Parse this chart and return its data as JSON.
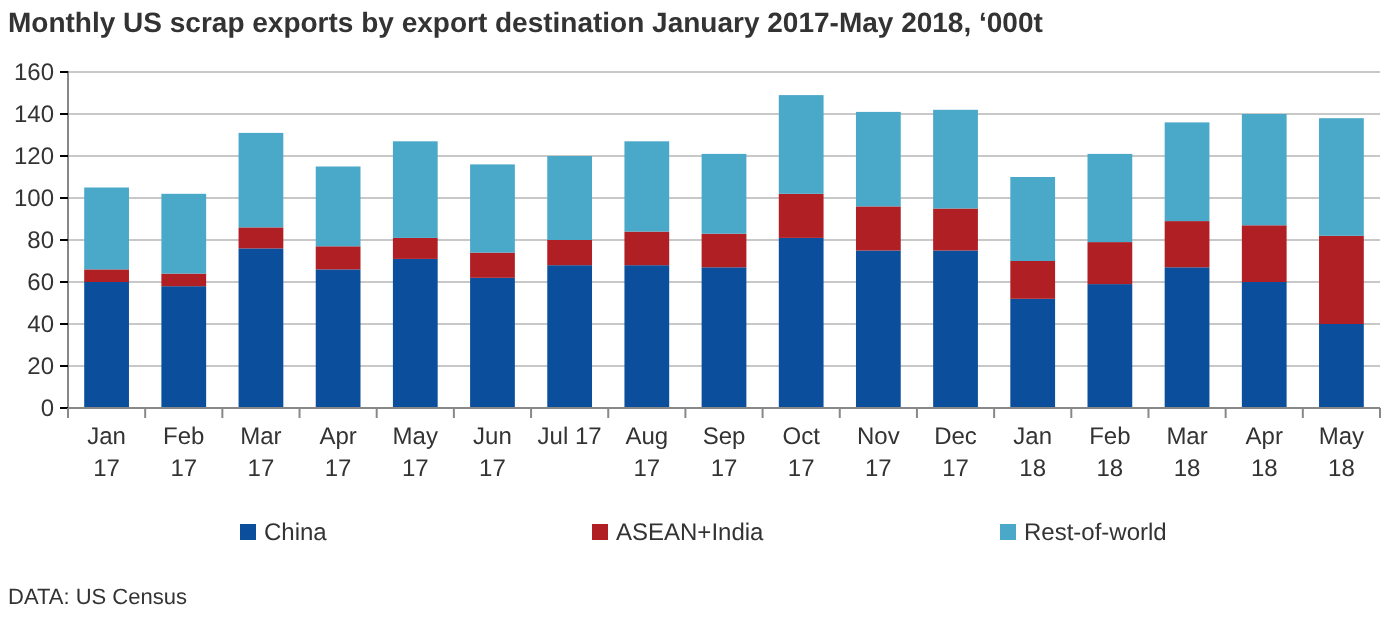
{
  "chart_data": {
    "type": "bar",
    "stacked": true,
    "title": "Monthly US scrap exports by export destination January 2017-May 2018, ‘000t",
    "categories": [
      "Jan\n17",
      "Feb\n17",
      "Mar\n17",
      "Apr\n17",
      "May\n17",
      "Jun\n17",
      "Jul 17",
      "Aug\n17",
      "Sep\n17",
      "Oct\n17",
      "Nov\n17",
      "Dec\n17",
      "Jan\n18",
      "Feb\n18",
      "Mar\n18",
      "Apr\n18",
      "May\n18"
    ],
    "series": [
      {
        "name": "China",
        "color": "#0b4f9c",
        "values": [
          60,
          58,
          76,
          66,
          71,
          62,
          68,
          68,
          67,
          81,
          75,
          75,
          52,
          59,
          67,
          60,
          40
        ]
      },
      {
        "name": "ASEAN+India",
        "color": "#b01f24",
        "values": [
          6,
          6,
          10,
          11,
          10,
          12,
          12,
          16,
          16,
          21,
          21,
          20,
          18,
          20,
          22,
          27,
          42
        ]
      },
      {
        "name": "Rest-of-world",
        "color": "#4aa8c8",
        "values": [
          39,
          38,
          45,
          38,
          46,
          42,
          40,
          43,
          38,
          47,
          45,
          47,
          40,
          42,
          47,
          53,
          56
        ]
      }
    ],
    "ylim": [
      0,
      160
    ],
    "yticks": [
      0,
      20,
      40,
      60,
      80,
      100,
      120,
      140,
      160
    ],
    "grid": "y",
    "legend": "bottom",
    "annotations": [
      "DATA: US Census"
    ]
  }
}
